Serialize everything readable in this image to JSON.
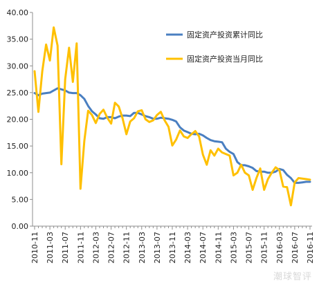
{
  "watermark": "潮球智评",
  "chart_data": {
    "type": "line",
    "ylim": [
      0,
      40
    ],
    "yticks": [
      "0.00",
      "5.00",
      "10.00",
      "15.00",
      "20.00",
      "25.00",
      "30.00",
      "35.00",
      "40.00"
    ],
    "grid": false,
    "legend_position": "top-right",
    "categories": [
      "2010-11",
      "2010-12",
      "2011-01",
      "2011-02",
      "2011-03",
      "2011-04",
      "2011-05",
      "2011-06",
      "2011-07",
      "2011-08",
      "2011-09",
      "2011-10",
      "2011-11",
      "2011-12",
      "2012-01",
      "2012-02",
      "2012-03",
      "2012-04",
      "2012-05",
      "2012-06",
      "2012-07",
      "2012-08",
      "2012-09",
      "2012-10",
      "2012-11",
      "2012-12",
      "2013-01",
      "2013-02",
      "2013-03",
      "2013-04",
      "2013-05",
      "2013-06",
      "2013-07",
      "2013-08",
      "2013-09",
      "2013-10",
      "2013-11",
      "2013-12",
      "2014-01",
      "2014-02",
      "2014-03",
      "2014-04",
      "2014-05",
      "2014-06",
      "2014-07",
      "2014-08",
      "2014-09",
      "2014-10",
      "2014-11",
      "2014-12",
      "2015-01",
      "2015-02",
      "2015-03",
      "2015-04",
      "2015-05",
      "2015-06",
      "2015-07",
      "2015-08",
      "2015-09",
      "2015-10",
      "2015-11",
      "2015-12",
      "2016-01",
      "2016-02",
      "2016-03",
      "2016-04",
      "2016-05",
      "2016-06",
      "2016-07",
      "2016-08",
      "2016-09",
      "2016-10",
      "2016-11"
    ],
    "tick_labels": [
      "2010-11",
      "2011-03",
      "2011-07",
      "2011-11",
      "2012-03",
      "2012-07",
      "2012-11",
      "2013-03",
      "2013-07",
      "2013-11",
      "2014-03",
      "2014-07",
      "2014-11",
      "2015-03",
      "2015-07",
      "2015-11",
      "2016-03",
      "2016-07",
      "2016-11"
    ],
    "series": [
      {
        "name": "固定资产投资累计同比",
        "color": "#4a7fc1",
        "values": [
          24.9,
          24.5,
          24.8,
          24.9,
          25.0,
          25.4,
          25.8,
          25.6,
          25.4,
          25.0,
          24.9,
          24.9,
          24.5,
          23.8,
          22.5,
          21.5,
          20.9,
          20.2,
          20.1,
          20.4,
          20.4,
          20.2,
          20.5,
          20.7,
          20.7,
          20.6,
          21.2,
          21.2,
          20.9,
          20.6,
          20.4,
          20.1,
          20.1,
          20.3,
          20.2,
          20.1,
          19.9,
          19.6,
          18.5,
          17.9,
          17.6,
          17.3,
          17.2,
          17.3,
          17.0,
          16.5,
          16.1,
          15.9,
          15.8,
          15.7,
          14.5,
          13.9,
          13.5,
          12.0,
          11.4,
          11.4,
          11.2,
          10.9,
          10.3,
          10.2,
          10.2,
          10.0,
          10.0,
          10.2,
          10.7,
          10.5,
          9.6,
          9.0,
          8.1,
          8.1,
          8.2,
          8.3,
          8.3
        ]
      },
      {
        "name": "固定资产投资当月同比",
        "color": "#ffc000",
        "values": [
          29.0,
          21.4,
          29.0,
          34.0,
          31.0,
          37.2,
          33.8,
          11.6,
          27.5,
          33.4,
          27.0,
          34.2,
          7.0,
          16.0,
          21.6,
          20.8,
          19.3,
          21.0,
          21.8,
          20.3,
          19.2,
          23.1,
          22.4,
          20.2,
          17.2,
          19.6,
          20.2,
          21.5,
          21.7,
          20.0,
          19.5,
          19.8,
          20.8,
          21.4,
          19.8,
          18.6,
          15.1,
          16.2,
          17.9,
          16.8,
          16.5,
          17.2,
          17.8,
          16.8,
          13.4,
          11.5,
          14.2,
          13.2,
          14.5,
          13.8,
          13.5,
          13.2,
          9.5,
          10.0,
          11.5,
          10.0,
          9.5,
          6.8,
          9.0,
          10.8,
          6.8,
          8.8,
          10.0,
          11.0,
          10.5,
          7.4,
          7.3,
          3.9,
          8.2,
          9.0,
          8.9,
          8.8,
          8.7
        ]
      }
    ]
  }
}
